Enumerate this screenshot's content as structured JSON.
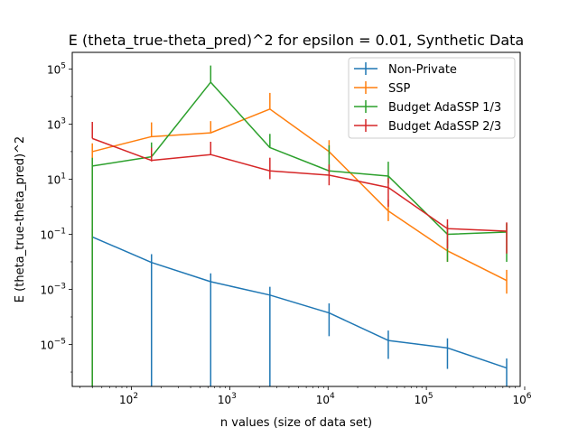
{
  "chart_data": {
    "type": "line",
    "title": "E (theta_true-theta_pred)^2 for epsilon = 0.01, Synthetic Data",
    "xlabel": "n values (size of data set)",
    "ylabel": "E (theta_true-theta_pred)^2",
    "xscale": "log",
    "yscale": "log",
    "xlim": [
      25,
      900000
    ],
    "ylim": [
      3e-07,
      400000
    ],
    "grid": false,
    "legend_position": "top-right",
    "x_ticks": [
      {
        "value": 100,
        "base": "10",
        "exp": "2"
      },
      {
        "value": 1000,
        "base": "10",
        "exp": "3"
      },
      {
        "value": 10000,
        "base": "10",
        "exp": "4"
      },
      {
        "value": 100000,
        "base": "10",
        "exp": "5"
      },
      {
        "value": 1000000,
        "base": "10",
        "exp": "6"
      }
    ],
    "y_ticks": [
      {
        "value": 1e-05,
        "base": "10",
        "exp": "−5"
      },
      {
        "value": 0.001,
        "base": "10",
        "exp": "−3"
      },
      {
        "value": 0.1,
        "base": "10",
        "exp": "−1"
      },
      {
        "value": 10,
        "base": "10",
        "exp": "1"
      },
      {
        "value": 1000,
        "base": "10",
        "exp": "3"
      },
      {
        "value": 100000,
        "base": "10",
        "exp": "5"
      }
    ],
    "x": [
      40,
      160,
      640,
      2560,
      10240,
      40960,
      163840,
      655360
    ],
    "series": [
      {
        "name": "Non-Private",
        "color": "#1f77b4",
        "values": [
          0.08,
          0.0095,
          0.0019,
          0.00062,
          0.00014,
          1.4e-05,
          7.5e-06,
          1.4e-06
        ],
        "err_low": [
          0.08,
          0.0095,
          0.0019,
          0.00062,
          0.00012,
          1.1e-05,
          6.2e-06,
          1.2e-06
        ],
        "err_high": [
          0.08,
          0.0095,
          0.0019,
          0.00062,
          0.00017,
          1.8e-05,
          9.2e-06,
          1.7e-06
        ]
      },
      {
        "name": "SSP",
        "color": "#ff7f0e",
        "values": [
          100,
          350,
          480,
          3500,
          100,
          0.7,
          0.025,
          0.0021
        ],
        "err_low": [
          100,
          5,
          5,
          10,
          25,
          0.4,
          0.015,
          0.0014
        ],
        "err_high": [
          100,
          800,
          800,
          10000,
          160,
          1.1,
          0.04,
          0.003
        ]
      },
      {
        "name": "Budget AdaSSP 1/3",
        "color": "#2ca02c",
        "values": [
          30,
          65,
          33000,
          140,
          20,
          13,
          0.1,
          0.12
        ],
        "err_low": [
          30,
          3e-07,
          3e-07,
          3e-07,
          3,
          6,
          0.09,
          0.11
        ],
        "err_high": [
          30,
          150,
          100000,
          300,
          150,
          30,
          0.12,
          0.13
        ]
      },
      {
        "name": "Budget AdaSSP 2/3",
        "color": "#d62728",
        "values": [
          300,
          48,
          78,
          20,
          14,
          5,
          0.16,
          0.13
        ],
        "err_low": [
          3e-07,
          4,
          1,
          10,
          8,
          4,
          0.13,
          0.11
        ],
        "err_high": [
          900,
          90,
          150,
          40,
          20,
          6,
          0.19,
          0.14
        ]
      }
    ]
  }
}
